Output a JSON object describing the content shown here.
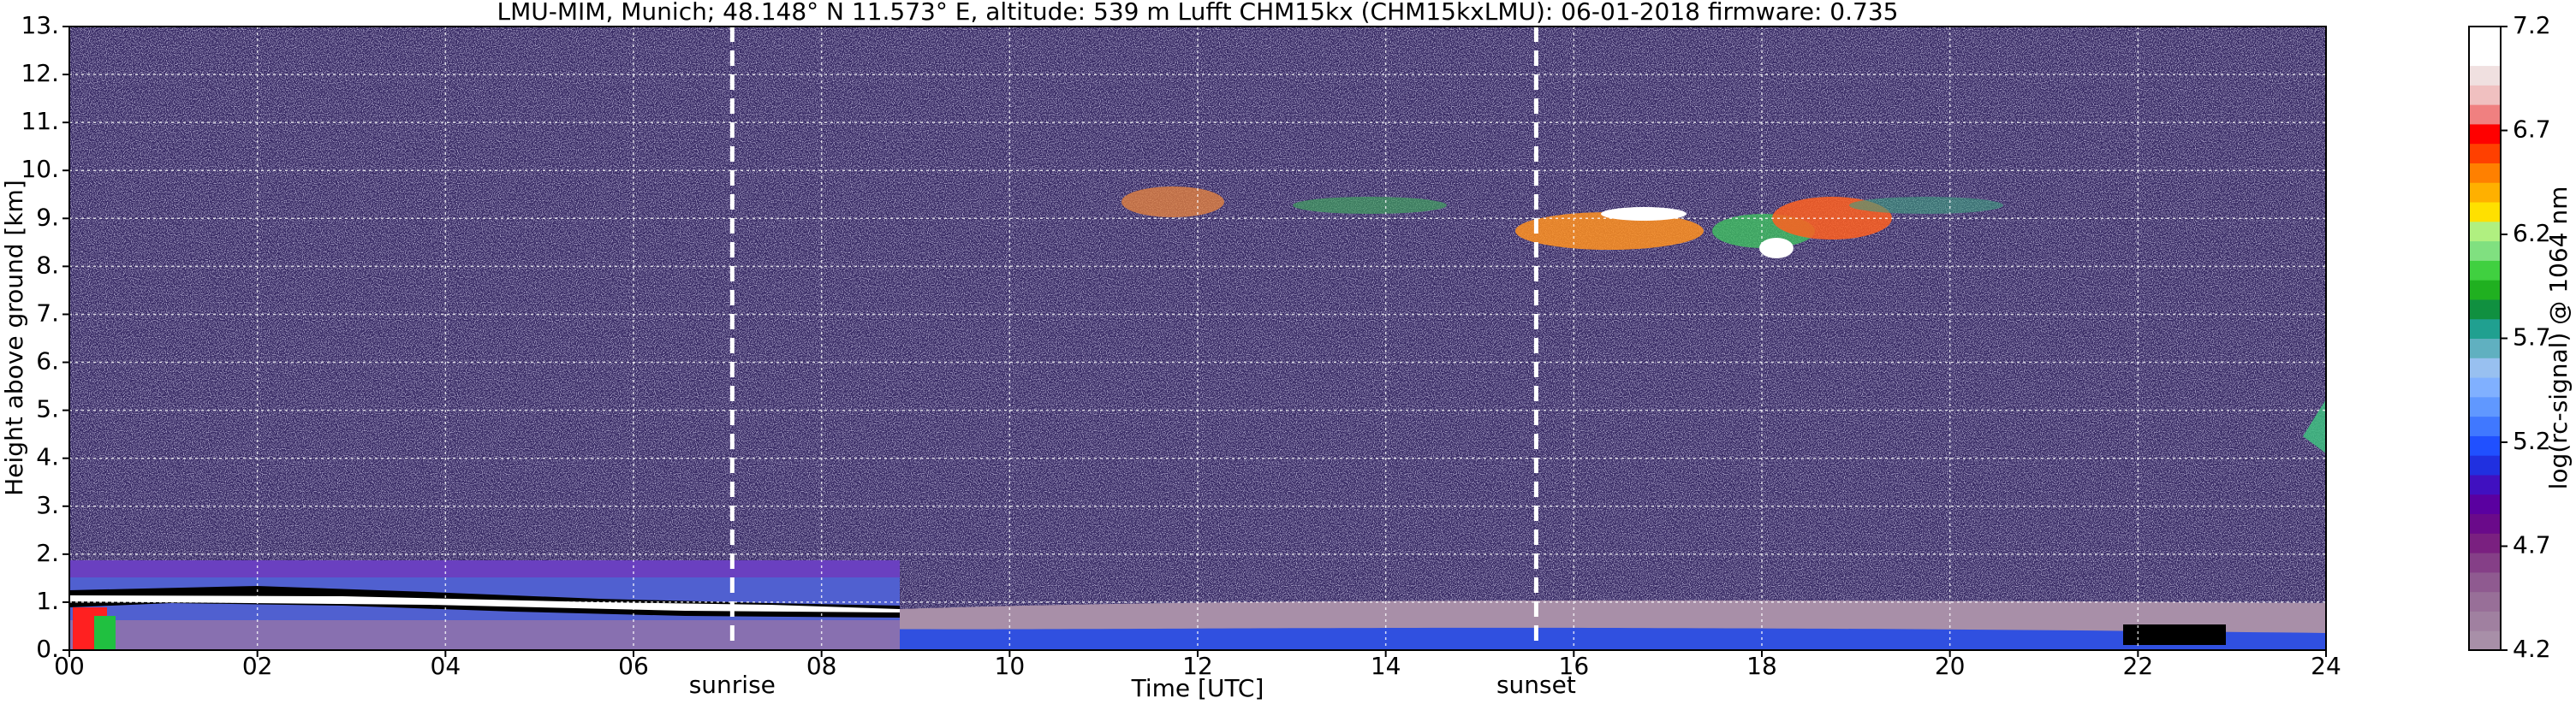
{
  "chart_data": {
    "type": "heatmap",
    "title": "LMU-MIM, Munich; 48.148° N 11.573° E, altitude: 539 m    Lufft CHM15kx (CHM15kxLMU): 06-01-2018    firmware: 0.735",
    "xlabel": "Time [UTC]",
    "ylabel": "Height above ground [km]",
    "xlim": [
      0,
      24
    ],
    "xticks": [
      {
        "value": 0,
        "label": "00"
      },
      {
        "value": 2,
        "label": "02"
      },
      {
        "value": 4,
        "label": "04"
      },
      {
        "value": 6,
        "label": "06"
      },
      {
        "value": 8,
        "label": "08"
      },
      10,
      12,
      14,
      16,
      18,
      20,
      22,
      24
    ],
    "ylim": [
      0,
      13
    ],
    "yticks": [
      {
        "value": 0,
        "label": "0."
      },
      {
        "value": 1,
        "label": "1."
      },
      {
        "value": 2,
        "label": "2."
      },
      {
        "value": 3,
        "label": "3."
      },
      {
        "value": 4,
        "label": "4."
      },
      {
        "value": 5,
        "label": "5."
      },
      {
        "value": 6,
        "label": "6."
      },
      {
        "value": 7,
        "label": "7."
      },
      {
        "value": 8,
        "label": "8."
      },
      {
        "value": 9,
        "label": "9."
      },
      {
        "value": 10,
        "label": "10."
      },
      {
        "value": 11,
        "label": "11."
      },
      {
        "value": 12,
        "label": "12."
      },
      {
        "value": 13,
        "label": "13."
      }
    ],
    "grid": true,
    "annotations": [
      {
        "x": 7.05,
        "label": "sunrise"
      },
      {
        "x": 15.6,
        "label": "sunset"
      }
    ],
    "colorbar": {
      "label": "log(rc-signal) @ 1064 nm",
      "clim": [
        4.2,
        7.2
      ],
      "ticks": [
        4.2,
        4.7,
        5.2,
        5.7,
        6.2,
        6.7,
        7.2
      ],
      "colors": [
        "#a88fa8",
        "#a080a0",
        "#986f98",
        "#8f5a90",
        "#853f87",
        "#7a2080",
        "#6a0a8a",
        "#5a00a0",
        "#4010c0",
        "#2030e0",
        "#2050ff",
        "#4078ff",
        "#6098ff",
        "#80b0ff",
        "#98c0f0",
        "#60b0c0",
        "#20a090",
        "#109040",
        "#20b020",
        "#40d040",
        "#80e080",
        "#b0f080",
        "#ffe000",
        "#ffb000",
        "#ff8000",
        "#ff4000",
        "#ff0000",
        "#f08080",
        "#f0c0c0",
        "#f0e0e0",
        "#ffffff",
        "#ffffff"
      ]
    }
  }
}
